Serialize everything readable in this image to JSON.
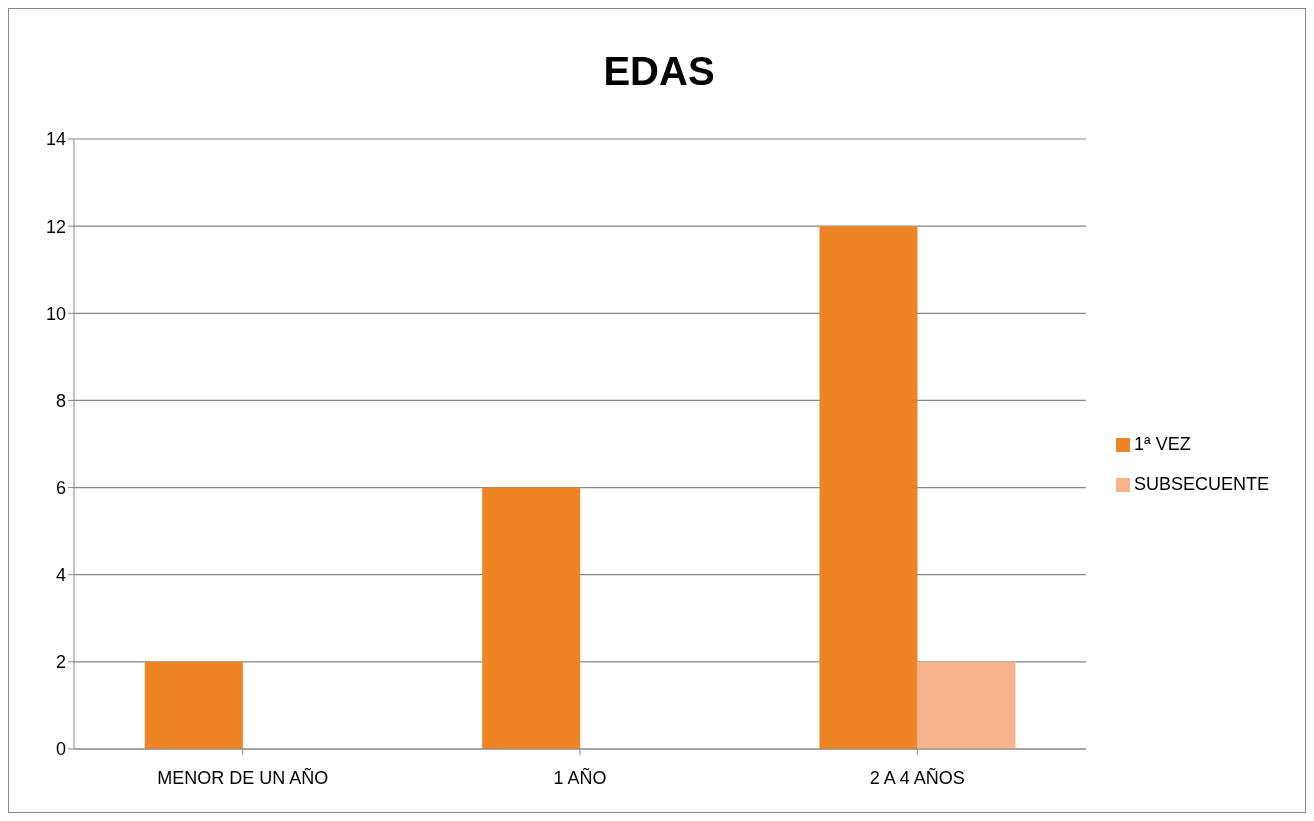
{
  "chart_data": {
    "type": "bar",
    "title": "EDAS",
    "categories": [
      "MENOR DE UN AÑO",
      "1 AÑO",
      "2 A 4 AÑOS"
    ],
    "series": [
      {
        "name": "1ª VEZ",
        "color": "#ef8424",
        "values": [
          2,
          6,
          12
        ]
      },
      {
        "name": "SUBSECUENTE",
        "color": "#f7b48c",
        "values": [
          0,
          0,
          2
        ]
      }
    ],
    "ylim": [
      0,
      14
    ],
    "yticks": [
      0,
      2,
      4,
      6,
      8,
      10,
      12,
      14
    ],
    "grid": "y",
    "legend": "right"
  }
}
